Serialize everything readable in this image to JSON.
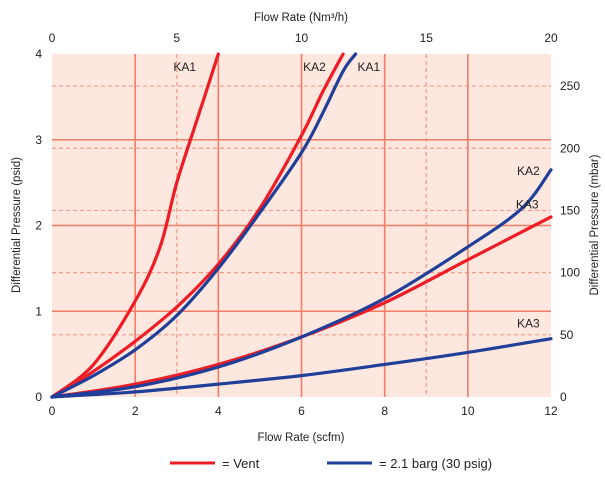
{
  "chart_data": {
    "type": "line",
    "title": "",
    "xlabel": "Flow Rate (scfm)",
    "ylabel": "Differential Pressure (psid)",
    "x2label": "Flow Rate (Nm³/h)",
    "y2label": "Differential Pressure (mbar)",
    "xlim": [
      0,
      12
    ],
    "ylim": [
      0,
      4
    ],
    "x2lim": [
      0,
      20
    ],
    "y2lim": [
      0,
      275.8
    ],
    "x_ticks": [
      "0",
      "2",
      "4",
      "6",
      "8",
      "10",
      "12"
    ],
    "y_ticks": [
      "0",
      "1",
      "2",
      "3",
      "4"
    ],
    "x2_ticks": [
      "0",
      "5",
      "10",
      "15",
      "20"
    ],
    "y2_ticks": [
      "0",
      "50",
      "100",
      "150",
      "200",
      "250"
    ],
    "x_tick_values": [
      0,
      2,
      4,
      6,
      8,
      10,
      12
    ],
    "y_tick_values": [
      0,
      1,
      2,
      3,
      4
    ],
    "x2_tick_values": [
      0,
      5,
      10,
      15,
      20
    ],
    "y2_tick_values": [
      0,
      50,
      100,
      150,
      200,
      250
    ],
    "series": [
      {
        "name": "Vent",
        "curve": "KA1",
        "color": "#ee1c24",
        "label": "KA1",
        "points": [
          [
            0,
            0
          ],
          [
            1,
            0.38
          ],
          [
            2,
            1.12
          ],
          [
            2.6,
            1.75
          ],
          [
            3,
            2.5
          ],
          [
            3.5,
            3.25
          ],
          [
            4,
            4.0
          ]
        ]
      },
      {
        "name": "Vent",
        "curve": "KA2",
        "color": "#ee1c24",
        "label": "KA2",
        "points": [
          [
            0,
            0
          ],
          [
            1,
            0.3
          ],
          [
            2,
            0.65
          ],
          [
            3,
            1.05
          ],
          [
            4,
            1.55
          ],
          [
            5,
            2.2
          ],
          [
            6,
            3.05
          ],
          [
            6.5,
            3.55
          ],
          [
            7,
            4.0
          ]
        ]
      },
      {
        "name": "Vent",
        "curve": "KA3",
        "color": "#ee1c24",
        "label": "",
        "points": [
          [
            0,
            0
          ],
          [
            2,
            0.15
          ],
          [
            4,
            0.38
          ],
          [
            6,
            0.7
          ],
          [
            8,
            1.1
          ],
          [
            10,
            1.6
          ],
          [
            12,
            2.1
          ]
        ]
      },
      {
        "name": "2.1 barg (30 psig)",
        "curve": "KA1",
        "color": "#1f3f99",
        "label": "KA1",
        "points": [
          [
            0,
            0
          ],
          [
            1,
            0.25
          ],
          [
            2,
            0.55
          ],
          [
            3,
            0.95
          ],
          [
            4,
            1.5
          ],
          [
            5,
            2.15
          ],
          [
            6,
            2.85
          ],
          [
            6.5,
            3.3
          ],
          [
            7,
            3.8
          ],
          [
            7.3,
            4.0
          ]
        ]
      },
      {
        "name": "2.1 barg (30 psig)",
        "curve": "KA2",
        "color": "#1f3f99",
        "label": "KA2",
        "points": [
          [
            0,
            0
          ],
          [
            2,
            0.12
          ],
          [
            4,
            0.35
          ],
          [
            6,
            0.7
          ],
          [
            8,
            1.15
          ],
          [
            10,
            1.75
          ],
          [
            11.3,
            2.2
          ],
          [
            12,
            2.65
          ]
        ]
      },
      {
        "name": "2.1 barg (30 psig)",
        "curve": "KA3",
        "color": "#1f3f99",
        "label": "KA3",
        "points": [
          [
            0,
            0
          ],
          [
            2,
            0.06
          ],
          [
            4,
            0.15
          ],
          [
            6,
            0.25
          ],
          [
            8,
            0.38
          ],
          [
            10,
            0.52
          ],
          [
            12,
            0.68
          ]
        ]
      }
    ],
    "extra_labels": [
      {
        "text": "KA3",
        "x": 11.3,
        "y": 2.15
      }
    ],
    "legend": {
      "placement": "bottom",
      "items": [
        {
          "text": "= Vent",
          "color": "#ee1c24"
        },
        {
          "text": "= 2.1 barg (30 psig)",
          "color": "#1f3f99"
        }
      ]
    },
    "grid": true,
    "colors": {
      "plot_bg": "#fde7df",
      "grid_solid": "#f37c66",
      "grid_dashed": "#f59a87",
      "vent": "#ee1c24",
      "pressurized": "#1f3f99"
    }
  }
}
